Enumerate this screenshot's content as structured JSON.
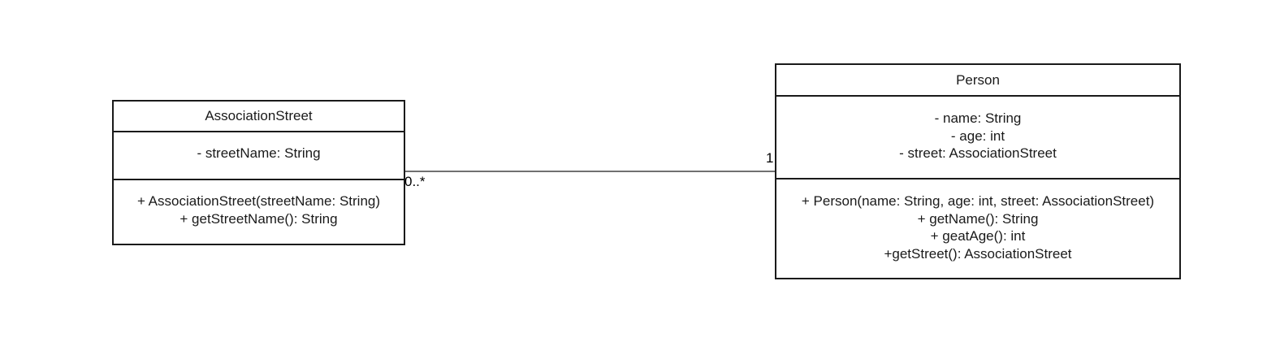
{
  "diagram": {
    "classes": [
      {
        "name": "AssociationStreet",
        "attributes": [
          "- streetName: String"
        ],
        "methods": [
          "+ AssociationStreet(streetName: String)",
          "+ getStreetName(): String"
        ]
      },
      {
        "name": "Person",
        "attributes": [
          "- name: String",
          "- age: int",
          "- street: AssociationStreet"
        ],
        "methods": [
          "+ Person(name: String, age: int, street: AssociationStreet)",
          "+ getName(): String",
          "+ geatAge(): int",
          "+getStreet(): AssociationStreet"
        ]
      }
    ],
    "association": {
      "from": "AssociationStreet",
      "to": "Person",
      "multiplicity_from": "0..*",
      "multiplicity_to": "1"
    },
    "colors": {
      "stroke": "#1a1a1a",
      "background": "#ffffff"
    }
  }
}
